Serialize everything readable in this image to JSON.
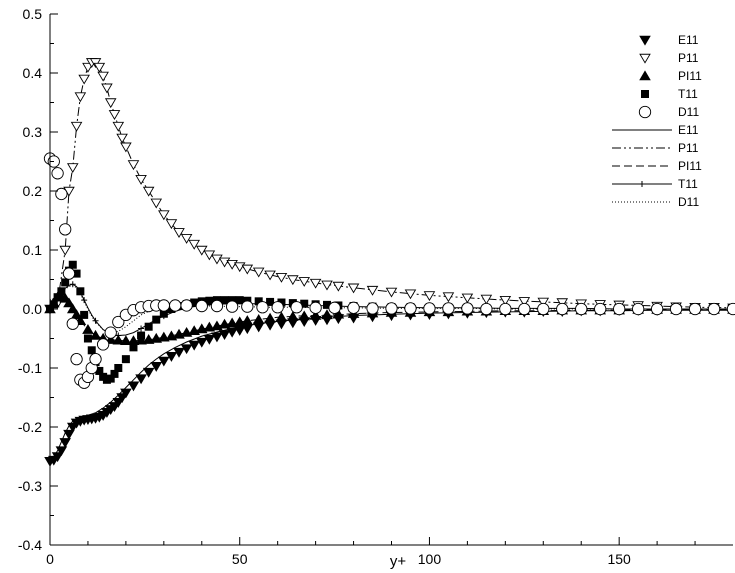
{
  "chart_data": {
    "type": "scatter",
    "title": "",
    "xlabel": "y+",
    "ylabel": "",
    "xlim": [
      0,
      180
    ],
    "ylim": [
      -0.4,
      0.5
    ],
    "xticks": [
      "0",
      "50",
      "100",
      "150"
    ],
    "yticks": [
      "-0.4",
      "-0.3",
      "-0.2",
      "-0.1",
      "0.0",
      "0.1",
      "0.2",
      "0.3",
      "0.4",
      "0.5"
    ],
    "grid": false,
    "legend_position": "top-right",
    "marker_series": [
      {
        "name": "E11",
        "marker": "triangle-down-filled",
        "x": [
          0,
          1,
          2,
          3,
          4,
          5,
          6,
          7,
          8,
          9,
          10,
          11,
          12,
          13,
          14,
          15,
          16,
          17,
          18,
          19,
          20,
          22,
          24,
          26,
          28,
          30,
          32,
          34,
          36,
          38,
          40,
          42,
          44,
          46,
          48,
          50,
          52,
          55,
          58,
          61,
          64,
          67,
          70,
          73,
          76,
          80,
          85,
          90,
          95,
          100,
          105,
          110,
          115,
          120,
          125,
          130,
          135,
          140,
          145,
          150,
          155,
          160,
          165,
          170,
          175,
          180
        ],
        "y": [
          -0.258,
          -0.256,
          -0.25,
          -0.24,
          -0.226,
          -0.212,
          -0.2,
          -0.193,
          -0.19,
          -0.188,
          -0.187,
          -0.186,
          -0.185,
          -0.183,
          -0.18,
          -0.175,
          -0.17,
          -0.165,
          -0.158,
          -0.15,
          -0.142,
          -0.13,
          -0.118,
          -0.107,
          -0.097,
          -0.088,
          -0.08,
          -0.073,
          -0.067,
          -0.061,
          -0.056,
          -0.051,
          -0.047,
          -0.043,
          -0.039,
          -0.036,
          -0.033,
          -0.03,
          -0.027,
          -0.025,
          -0.023,
          -0.021,
          -0.019,
          -0.018,
          -0.016,
          -0.015,
          -0.013,
          -0.011,
          -0.01,
          -0.009,
          -0.008,
          -0.007,
          -0.006,
          -0.005,
          -0.005,
          -0.004,
          -0.004,
          -0.003,
          -0.003,
          -0.002,
          -0.002,
          -0.002,
          -0.001,
          -0.001,
          -0.001,
          -0.001
        ]
      },
      {
        "name": "P11",
        "marker": "triangle-down-open",
        "x": [
          0,
          2,
          4,
          5,
          6,
          7,
          8,
          9,
          10,
          11,
          12,
          13,
          14,
          15,
          16,
          17,
          18,
          19,
          20,
          22,
          24,
          26,
          28,
          30,
          32,
          34,
          36,
          38,
          40,
          42,
          44,
          46,
          48,
          50,
          52,
          55,
          58,
          61,
          64,
          67,
          70,
          73,
          76,
          80,
          85,
          90,
          95,
          100,
          105,
          110,
          115,
          120,
          125,
          130,
          135,
          140,
          145,
          150,
          155,
          160,
          165,
          170,
          175,
          180
        ],
        "y": [
          0.0,
          0.01,
          0.1,
          0.2,
          0.24,
          0.31,
          0.36,
          0.39,
          0.41,
          0.418,
          0.418,
          0.41,
          0.395,
          0.375,
          0.35,
          0.33,
          0.31,
          0.29,
          0.275,
          0.245,
          0.22,
          0.2,
          0.18,
          0.16,
          0.145,
          0.13,
          0.12,
          0.11,
          0.1,
          0.092,
          0.085,
          0.08,
          0.076,
          0.072,
          0.068,
          0.063,
          0.058,
          0.054,
          0.05,
          0.047,
          0.044,
          0.041,
          0.039,
          0.036,
          0.032,
          0.029,
          0.026,
          0.023,
          0.021,
          0.019,
          0.017,
          0.015,
          0.013,
          0.012,
          0.011,
          0.009,
          0.008,
          0.007,
          0.006,
          0.005,
          0.004,
          0.003,
          0.003,
          0.002
        ]
      },
      {
        "name": "PI11",
        "marker": "triangle-up-filled",
        "x": [
          0,
          1,
          2,
          3,
          4,
          5,
          6,
          7,
          8,
          10,
          12,
          14,
          16,
          18,
          20,
          22,
          24,
          26,
          28,
          30,
          32,
          34,
          36,
          38,
          40,
          42,
          44,
          46,
          48,
          50,
          52,
          55,
          58,
          61,
          64,
          67,
          70,
          73,
          76,
          80,
          85,
          90,
          95,
          100,
          105,
          110,
          115,
          120,
          125,
          130,
          135,
          140,
          145,
          150,
          155,
          160,
          165,
          170,
          175,
          180
        ],
        "y": [
          0.0,
          0.01,
          0.02,
          0.02,
          0.018,
          0.01,
          0.0,
          -0.01,
          -0.02,
          -0.035,
          -0.045,
          -0.05,
          -0.052,
          -0.053,
          -0.054,
          -0.054,
          -0.053,
          -0.052,
          -0.05,
          -0.048,
          -0.046,
          -0.043,
          -0.04,
          -0.037,
          -0.034,
          -0.031,
          -0.029,
          -0.026,
          -0.024,
          -0.022,
          -0.02,
          -0.018,
          -0.016,
          -0.014,
          -0.013,
          -0.012,
          -0.011,
          -0.01,
          -0.009,
          -0.008,
          -0.007,
          -0.006,
          -0.006,
          -0.005,
          -0.005,
          -0.004,
          -0.004,
          -0.003,
          -0.003,
          -0.003,
          -0.002,
          -0.002,
          -0.002,
          -0.002,
          -0.001,
          -0.001,
          -0.001,
          -0.001,
          -0.001,
          -0.001
        ]
      },
      {
        "name": "T11",
        "marker": "square-filled",
        "x": [
          0,
          1,
          2,
          3,
          4,
          5,
          6,
          7,
          8,
          9,
          10,
          11,
          12,
          13,
          14,
          15,
          16,
          17,
          18,
          20,
          22,
          24,
          26,
          28,
          30,
          32,
          34,
          36,
          38,
          40,
          42,
          44,
          46,
          48,
          50,
          52,
          55,
          58,
          61,
          64,
          67,
          70,
          73,
          76,
          80,
          85,
          90,
          95,
          100,
          105,
          110,
          115,
          120,
          125,
          130,
          135,
          140,
          145,
          150,
          155,
          160,
          165,
          170,
          175,
          180
        ],
        "y": [
          0.0,
          0.008,
          0.02,
          0.03,
          0.045,
          0.065,
          0.075,
          0.06,
          0.03,
          -0.01,
          -0.05,
          -0.07,
          -0.09,
          -0.105,
          -0.115,
          -0.12,
          -0.118,
          -0.11,
          -0.1,
          -0.085,
          -0.065,
          -0.045,
          -0.03,
          -0.018,
          -0.008,
          0.0,
          0.005,
          0.008,
          0.011,
          0.013,
          0.014,
          0.015,
          0.015,
          0.015,
          0.015,
          0.014,
          0.013,
          0.012,
          0.011,
          0.01,
          0.009,
          0.008,
          0.007,
          0.006,
          0.005,
          0.004,
          0.003,
          0.003,
          0.002,
          0.002,
          0.002,
          0.001,
          0.001,
          0.001,
          0.001,
          0.001,
          0.001,
          0.0,
          0.0,
          0.0,
          0.0,
          0.0,
          0.0,
          0.0,
          0.0
        ]
      },
      {
        "name": "D11",
        "marker": "circle-open",
        "x": [
          0,
          1,
          2,
          3,
          4,
          5,
          6,
          7,
          8,
          9,
          10,
          11,
          12,
          14,
          16,
          18,
          20,
          22,
          24,
          26,
          28,
          30,
          33,
          36,
          40,
          44,
          48,
          52,
          56,
          60,
          65,
          70,
          75,
          80,
          85,
          90,
          95,
          100,
          105,
          110,
          115,
          120,
          125,
          130,
          135,
          140,
          145,
          150,
          155,
          160,
          165,
          170,
          175,
          180
        ],
        "y": [
          0.255,
          0.25,
          0.23,
          0.195,
          0.135,
          0.06,
          -0.025,
          -0.085,
          -0.12,
          -0.125,
          -0.115,
          -0.1,
          -0.085,
          -0.06,
          -0.04,
          -0.022,
          -0.01,
          -0.002,
          0.003,
          0.005,
          0.006,
          0.006,
          0.006,
          0.006,
          0.005,
          0.005,
          0.004,
          0.004,
          0.003,
          0.003,
          0.003,
          0.002,
          0.002,
          0.002,
          0.001,
          0.001,
          0.001,
          0.001,
          0.001,
          0.001,
          0.0,
          0.0,
          0.0,
          0.0,
          0.0,
          0.0,
          0.0,
          0.0,
          0.0,
          0.0,
          0.0,
          0.0,
          0.0,
          0.0
        ]
      }
    ],
    "line_series": [
      {
        "name": "E11",
        "dash": "solid",
        "x": [
          0,
          1,
          2,
          3,
          4,
          5,
          6,
          7,
          8,
          9,
          10,
          12,
          14,
          16,
          18,
          20,
          22,
          24,
          26,
          28,
          30,
          33,
          36,
          40,
          44,
          48,
          52,
          56,
          60,
          65,
          70,
          75,
          80,
          90,
          100,
          110,
          120,
          130,
          140,
          150,
          160,
          170,
          180
        ],
        "y": [
          -0.255,
          -0.25,
          -0.24,
          -0.225,
          -0.21,
          -0.198,
          -0.19,
          -0.185,
          -0.183,
          -0.182,
          -0.18,
          -0.176,
          -0.168,
          -0.158,
          -0.146,
          -0.133,
          -0.12,
          -0.107,
          -0.095,
          -0.085,
          -0.076,
          -0.065,
          -0.056,
          -0.046,
          -0.039,
          -0.033,
          -0.028,
          -0.024,
          -0.021,
          -0.018,
          -0.015,
          -0.013,
          -0.011,
          -0.009,
          -0.007,
          -0.006,
          -0.005,
          -0.004,
          -0.003,
          -0.003,
          -0.002,
          -0.002,
          -0.002
        ]
      },
      {
        "name": "P11",
        "dash": "dashdotdot",
        "x": [
          0,
          2,
          4,
          5,
          6,
          7,
          8,
          9,
          10,
          11,
          12,
          13,
          14,
          15,
          16,
          17,
          18,
          19,
          20,
          22,
          24,
          26,
          28,
          30,
          33,
          36,
          40,
          44,
          48,
          52,
          56,
          60,
          65,
          70,
          75,
          80,
          90,
          100,
          110,
          120,
          130,
          140,
          150,
          160,
          170,
          180
        ],
        "y": [
          0.0,
          0.01,
          0.1,
          0.2,
          0.24,
          0.31,
          0.36,
          0.39,
          0.41,
          0.418,
          0.418,
          0.41,
          0.395,
          0.375,
          0.35,
          0.33,
          0.31,
          0.29,
          0.275,
          0.245,
          0.22,
          0.2,
          0.18,
          0.16,
          0.137,
          0.12,
          0.1,
          0.085,
          0.076,
          0.068,
          0.061,
          0.055,
          0.049,
          0.044,
          0.04,
          0.036,
          0.029,
          0.023,
          0.019,
          0.015,
          0.012,
          0.009,
          0.007,
          0.005,
          0.003,
          0.002
        ]
      },
      {
        "name": "PI11",
        "dash": "dashed",
        "x": [
          0,
          1,
          2,
          3,
          4,
          5,
          6,
          7,
          8,
          10,
          12,
          14,
          16,
          18,
          20,
          22,
          24,
          26,
          28,
          30,
          33,
          36,
          40,
          44,
          48,
          52,
          56,
          60,
          65,
          70,
          75,
          80,
          90,
          100,
          110,
          120,
          130,
          140,
          150,
          160,
          170,
          180
        ],
        "y": [
          0.0,
          0.01,
          0.02,
          0.02,
          0.018,
          0.01,
          0.0,
          -0.01,
          -0.02,
          -0.035,
          -0.045,
          -0.05,
          -0.052,
          -0.053,
          -0.054,
          -0.054,
          -0.053,
          -0.052,
          -0.05,
          -0.048,
          -0.044,
          -0.04,
          -0.034,
          -0.029,
          -0.024,
          -0.02,
          -0.017,
          -0.014,
          -0.012,
          -0.011,
          -0.01,
          -0.008,
          -0.006,
          -0.005,
          -0.004,
          -0.003,
          -0.003,
          -0.002,
          -0.002,
          -0.001,
          -0.001,
          -0.001
        ]
      },
      {
        "name": "T11",
        "dash": "solid-plus",
        "x": [
          0,
          1,
          2,
          3,
          4,
          5,
          6,
          7,
          8,
          9,
          10,
          11,
          12,
          14,
          16,
          18,
          20,
          22,
          24,
          26,
          28,
          30,
          33,
          36,
          40,
          44,
          48,
          52,
          56,
          60,
          65,
          70,
          75,
          80,
          90,
          100,
          110,
          120,
          130,
          140,
          150,
          160,
          170,
          180
        ],
        "y": [
          0.0,
          0.005,
          0.015,
          0.025,
          0.035,
          0.04,
          0.042,
          0.038,
          0.028,
          0.015,
          0.002,
          -0.01,
          -0.02,
          -0.035,
          -0.042,
          -0.045,
          -0.044,
          -0.04,
          -0.033,
          -0.025,
          -0.018,
          -0.012,
          -0.004,
          0.002,
          0.006,
          0.008,
          0.009,
          0.009,
          0.009,
          0.008,
          0.007,
          0.006,
          0.005,
          0.004,
          0.003,
          0.002,
          0.002,
          0.001,
          0.001,
          0.001,
          0.0,
          0.0,
          0.0,
          0.0
        ]
      },
      {
        "name": "D11",
        "dash": "dotted",
        "x": [
          0,
          1,
          2,
          3,
          4,
          5,
          6,
          7,
          8,
          9,
          10,
          11,
          12,
          14,
          16,
          18,
          20,
          22,
          24,
          26,
          28,
          30,
          33,
          36,
          40,
          44,
          48,
          52,
          56,
          60,
          65,
          70,
          75,
          80,
          90,
          100,
          110,
          120,
          130,
          140,
          150,
          160,
          170,
          180
        ],
        "y": [
          0.015,
          0.018,
          0.022,
          0.028,
          0.034,
          0.038,
          0.04,
          0.036,
          0.026,
          0.012,
          0.0,
          -0.012,
          -0.022,
          -0.035,
          -0.04,
          -0.038,
          -0.03,
          -0.02,
          -0.01,
          -0.004,
          0.0,
          0.002,
          0.004,
          0.005,
          0.005,
          0.005,
          0.004,
          0.004,
          0.003,
          0.003,
          0.003,
          0.002,
          0.002,
          0.002,
          0.001,
          0.001,
          0.001,
          0.0,
          0.0,
          0.0,
          0.0,
          0.0,
          0.0,
          0.0
        ]
      }
    ]
  }
}
